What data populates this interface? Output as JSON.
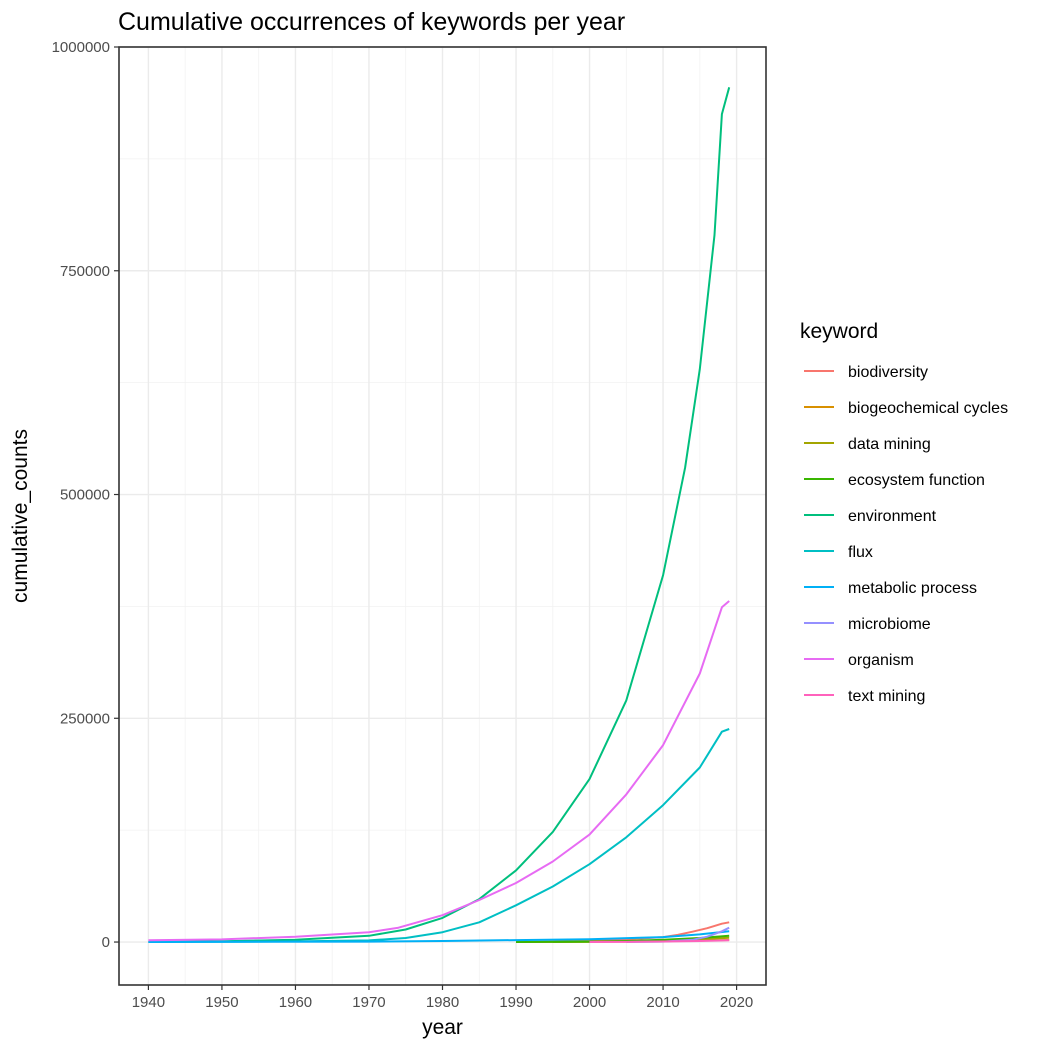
{
  "chart_data": {
    "type": "line",
    "title": "Cumulative occurrences of keywords per year",
    "xlabel": "year",
    "ylabel": "cumulative_counts",
    "xlim": [
      1936,
      2024
    ],
    "ylim": [
      -48000,
      1000000
    ],
    "x_ticks": [
      1940,
      1950,
      1960,
      1970,
      1980,
      1990,
      2000,
      2010,
      2020
    ],
    "y_ticks": [
      0,
      250000,
      500000,
      750000,
      1000000
    ],
    "x_tick_labels": [
      "1940",
      "1950",
      "1960",
      "1970",
      "1980",
      "1990",
      "2000",
      "2010",
      "2020"
    ],
    "y_tick_labels": [
      "0",
      "250000",
      "500000",
      "750000",
      "1000000"
    ],
    "grid": true,
    "legend_title": "keyword",
    "legend_position": "right",
    "series": [
      {
        "name": "biodiversity",
        "color": "#F8766D",
        "points": [
          [
            1990,
            0
          ],
          [
            1995,
            500
          ],
          [
            2000,
            1500
          ],
          [
            2005,
            3000
          ],
          [
            2010,
            5500
          ],
          [
            2012,
            8000
          ],
          [
            2014,
            11500
          ],
          [
            2016,
            15500
          ],
          [
            2018,
            20500
          ],
          [
            2019,
            22000
          ]
        ]
      },
      {
        "name": "biogeochemical cycles",
        "color": "#D89000",
        "points": [
          [
            1990,
            0
          ],
          [
            2000,
            300
          ],
          [
            2010,
            1000
          ],
          [
            2015,
            1600
          ],
          [
            2019,
            2300
          ]
        ]
      },
      {
        "name": "data mining",
        "color": "#A3A500",
        "points": [
          [
            1995,
            0
          ],
          [
            2000,
            300
          ],
          [
            2005,
            800
          ],
          [
            2010,
            1800
          ],
          [
            2015,
            3200
          ],
          [
            2019,
            4800
          ]
        ]
      },
      {
        "name": "ecosystem function",
        "color": "#39B600",
        "points": [
          [
            1990,
            0
          ],
          [
            2000,
            500
          ],
          [
            2005,
            1200
          ],
          [
            2010,
            2500
          ],
          [
            2015,
            4500
          ],
          [
            2019,
            7000
          ]
        ]
      },
      {
        "name": "environment",
        "color": "#00BF7D",
        "points": [
          [
            1940,
            0
          ],
          [
            1950,
            800
          ],
          [
            1960,
            2500
          ],
          [
            1970,
            7000
          ],
          [
            1975,
            14000
          ],
          [
            1980,
            27000
          ],
          [
            1985,
            48000
          ],
          [
            1990,
            80000
          ],
          [
            1995,
            123000
          ],
          [
            2000,
            182000
          ],
          [
            2005,
            270000
          ],
          [
            2010,
            410000
          ],
          [
            2013,
            530000
          ],
          [
            2015,
            640000
          ],
          [
            2017,
            790000
          ],
          [
            2018,
            925000
          ],
          [
            2019,
            955000
          ]
        ]
      },
      {
        "name": "flux",
        "color": "#00BFC4",
        "points": [
          [
            1940,
            0
          ],
          [
            1950,
            300
          ],
          [
            1960,
            700
          ],
          [
            1970,
            1800
          ],
          [
            1975,
            4500
          ],
          [
            1980,
            11000
          ],
          [
            1985,
            22000
          ],
          [
            1990,
            41000
          ],
          [
            1995,
            62000
          ],
          [
            2000,
            87000
          ],
          [
            2005,
            117000
          ],
          [
            2010,
            153000
          ],
          [
            2015,
            195000
          ],
          [
            2018,
            235000
          ],
          [
            2019,
            238000
          ]
        ]
      },
      {
        "name": "metabolic process",
        "color": "#00B0F6",
        "points": [
          [
            1940,
            0
          ],
          [
            1970,
            500
          ],
          [
            1980,
            1200
          ],
          [
            1990,
            2200
          ],
          [
            2000,
            3200
          ],
          [
            2010,
            5500
          ],
          [
            2015,
            8500
          ],
          [
            2019,
            12000
          ]
        ]
      },
      {
        "name": "microbiome",
        "color": "#9590FF",
        "points": [
          [
            2005,
            0
          ],
          [
            2010,
            500
          ],
          [
            2014,
            2500
          ],
          [
            2016,
            6000
          ],
          [
            2018,
            12000
          ],
          [
            2019,
            16000
          ]
        ]
      },
      {
        "name": "organism",
        "color": "#E76BF3",
        "points": [
          [
            1940,
            2000
          ],
          [
            1950,
            3000
          ],
          [
            1960,
            6000
          ],
          [
            1970,
            11000
          ],
          [
            1974,
            16000
          ],
          [
            1980,
            30000
          ],
          [
            1985,
            47000
          ],
          [
            1990,
            66000
          ],
          [
            1995,
            90000
          ],
          [
            2000,
            120000
          ],
          [
            2005,
            165000
          ],
          [
            2010,
            220000
          ],
          [
            2015,
            300000
          ],
          [
            2018,
            374000
          ],
          [
            2019,
            381000
          ]
        ]
      },
      {
        "name": "text mining",
        "color": "#FF62BC",
        "points": [
          [
            2000,
            0
          ],
          [
            2005,
            200
          ],
          [
            2010,
            600
          ],
          [
            2015,
            1200
          ],
          [
            2019,
            2000
          ]
        ]
      }
    ]
  }
}
